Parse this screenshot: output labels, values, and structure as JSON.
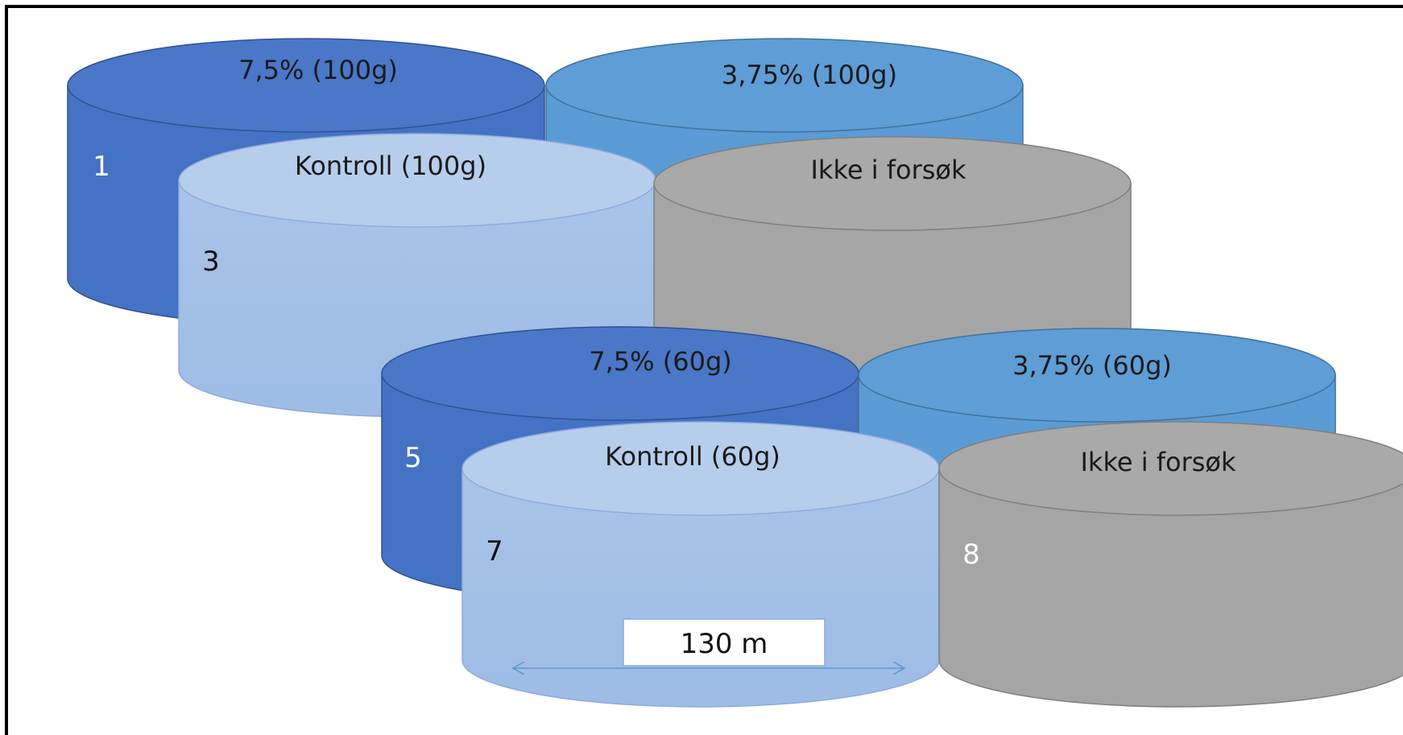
{
  "cylinders": [
    {
      "id": "c1",
      "label": "7,5% (100g)",
      "number": "1",
      "color": "#4472C4",
      "top_color": "#4A77C8",
      "stroke": "#2F528F",
      "number_color": "light"
    },
    {
      "id": "c2",
      "label": "3,75% (100g)",
      "number": "",
      "color": "#5B9BD5",
      "top_color": "#5E9DD6",
      "stroke": "#41719C",
      "number_color": "light"
    },
    {
      "id": "c3",
      "label": "Kontroll (100g)",
      "number": "3",
      "color": "#A8C4E6",
      "top_color": "#B6CEEB",
      "stroke": "#8FAADC",
      "number_color": "dark"
    },
    {
      "id": "c4",
      "label": "Ikke i forsøk",
      "number": "",
      "color": "#A5A5A5",
      "top_color": "#A9A9A9",
      "stroke": "#7F7F7F",
      "number_color": "dark"
    },
    {
      "id": "c5",
      "label": "7,5% (60g)",
      "number": "5",
      "color": "#4472C4",
      "top_color": "#4A77C8",
      "stroke": "#2F528F",
      "number_color": "light"
    },
    {
      "id": "c6",
      "label": "3,75% (60g)",
      "number": "",
      "color": "#5B9BD5",
      "top_color": "#5E9DD6",
      "stroke": "#41719C",
      "number_color": "light"
    },
    {
      "id": "c7",
      "label": "Kontroll (60g)",
      "number": "7",
      "color": "#A8C4E6",
      "top_color": "#B6CEEB",
      "stroke": "#8FAADC",
      "number_color": "dark"
    },
    {
      "id": "c8",
      "label": "Ikke i forsøk",
      "number": "8",
      "color": "#A5A5A5",
      "top_color": "#A9A9A9",
      "stroke": "#7F7F7F",
      "number_color": "light"
    }
  ],
  "scale": {
    "label": "130 m"
  }
}
